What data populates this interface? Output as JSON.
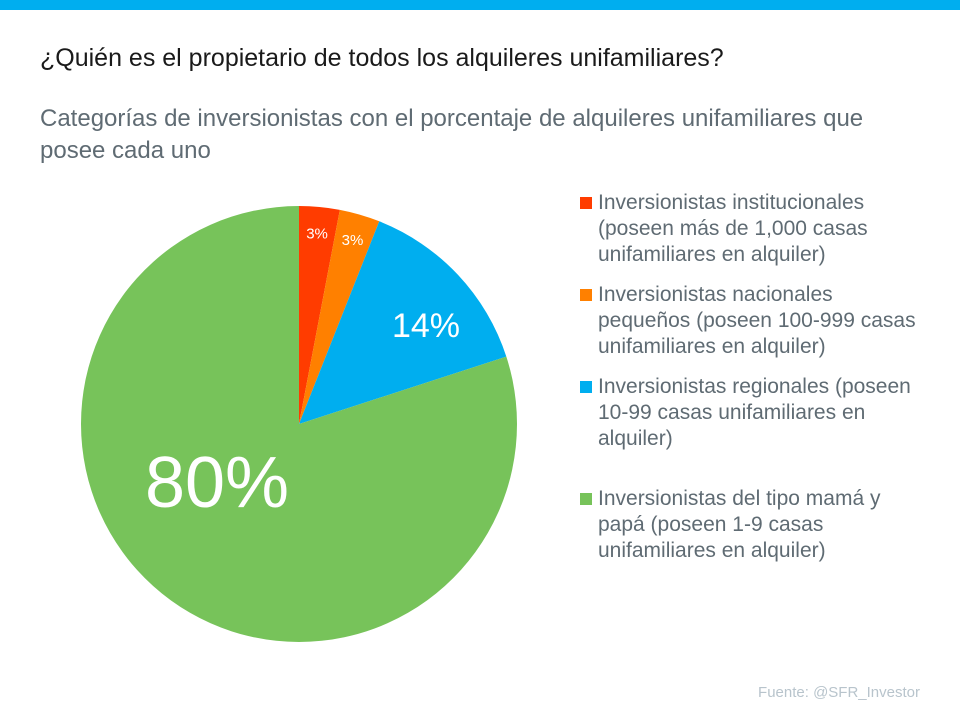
{
  "colors": {
    "bar": "#00AEEF"
  },
  "chart_data": {
    "type": "pie",
    "title": "¿Quién es el propietario de todos los alquileres unifamiliares?",
    "subtitle": "Categorías de inversionistas con el porcentaje de alquileres unifamiliares que posee cada uno",
    "legend_position": "right",
    "slices": [
      {
        "label": "Inversionistas institucionales (poseen más de 1,000 casas unifamiliares en alquiler)",
        "value": 3,
        "data_label": "3%",
        "color": "#FF3C00"
      },
      {
        "label": "Inversionistas nacionales pequeños (poseen 100-999 casas unifamiliares en alquiler)",
        "value": 3,
        "data_label": "3%",
        "color": "#FF8000"
      },
      {
        "label": "Inversionistas regionales (poseen 10-99 casas unifamiliares en alquiler)",
        "value": 14,
        "data_label": "14%",
        "color": "#00AEEF"
      },
      {
        "label": "Inversionistas del tipo mamá y papá  (poseen 1-9 casas unifamiliares en alquiler)",
        "value": 80,
        "data_label": "80%",
        "color": "#77C35A"
      }
    ]
  },
  "source": "Fuente:  @SFR_Investor"
}
